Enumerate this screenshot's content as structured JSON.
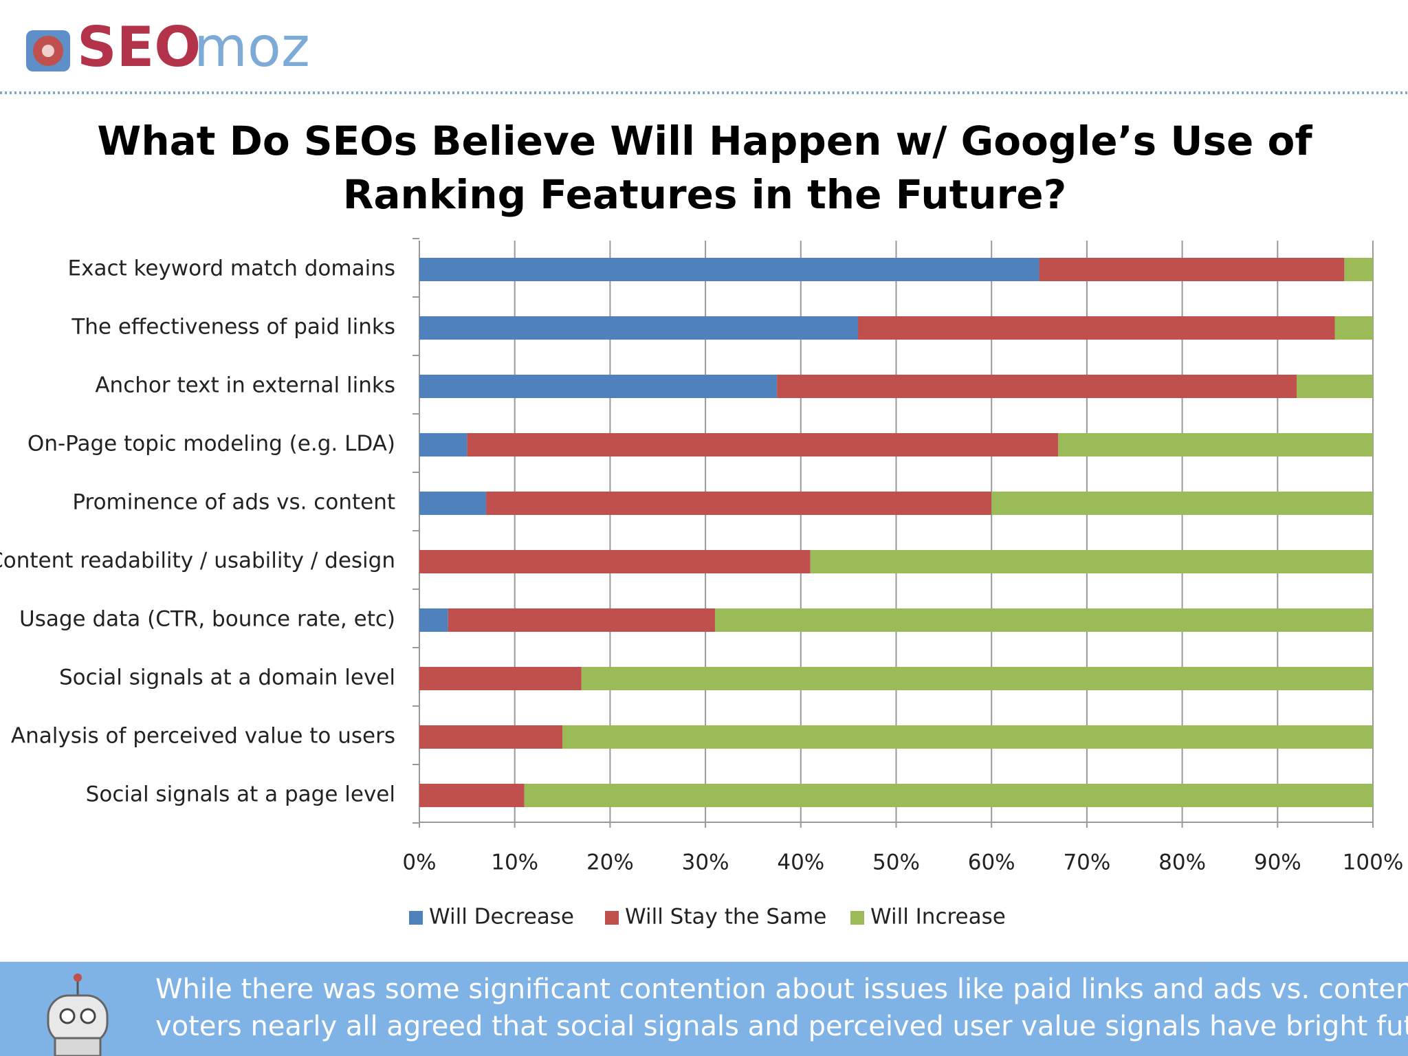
{
  "header": {
    "logo": {
      "bold": "SEO",
      "light": "moz"
    }
  },
  "chart_data": {
    "type": "stacked-barh",
    "title": [
      "What Do SEOs Believe Will Happen w/ Google’s Use of",
      "Ranking Features in the Future?"
    ],
    "categories": [
      "Exact keyword match domains",
      "The effectiveness of paid links",
      "Anchor text in external links",
      "On-Page topic modeling (e.g. LDA)",
      "Prominence of ads vs. content",
      "Content readability / usability / design",
      "Usage data (CTR, bounce rate, etc)",
      "Social signals at a domain level",
      "Analysis of perceived value to users",
      "Social signals at a page level"
    ],
    "series": [
      {
        "name": "Will Decrease",
        "color": "#4f81bd",
        "values": [
          65,
          46,
          37.5,
          5,
          7,
          0,
          3,
          0,
          0,
          0
        ]
      },
      {
        "name": "Will Stay the Same",
        "color": "#c0504d",
        "values": [
          32,
          50,
          54.5,
          62,
          53,
          41,
          28,
          17,
          15,
          11
        ]
      },
      {
        "name": "Will Increase",
        "color": "#9bbb59",
        "values": [
          3,
          4,
          8,
          33,
          40,
          59,
          69,
          83,
          85,
          89
        ]
      }
    ],
    "xlim": [
      0,
      100
    ],
    "xticks": [
      {
        "value": 0,
        "label": "0%"
      },
      {
        "value": 10,
        "label": "10%"
      },
      {
        "value": 20,
        "label": "20%"
      },
      {
        "value": 30,
        "label": "30%"
      },
      {
        "value": 40,
        "label": "40%"
      },
      {
        "value": 50,
        "label": "50%"
      },
      {
        "value": 60,
        "label": "60%"
      },
      {
        "value": 70,
        "label": "70%"
      },
      {
        "value": 80,
        "label": "80%"
      },
      {
        "value": 90,
        "label": "90%"
      },
      {
        "value": 100,
        "label": "100%"
      }
    ],
    "grid": true,
    "legend": "bottom"
  },
  "footer": {
    "lines": [
      "While there was some significant contention about issues like paid links and ads vs. content, the",
      "voters nearly all agreed that social signals and perceived user value signals have bright futures."
    ]
  }
}
